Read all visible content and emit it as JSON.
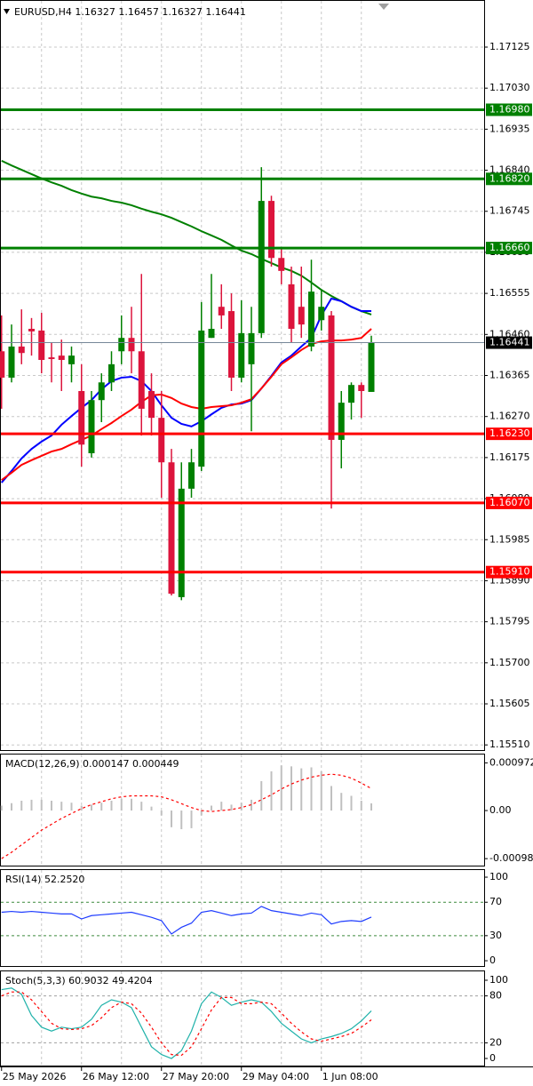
{
  "chart_data": [
    {
      "type": "candlestick",
      "title": "EURUSD,H4  1.16327 1.16457 1.16327 1.16441",
      "categories": [
        "25 May 2026",
        null,
        null,
        null,
        null,
        null,
        null,
        null,
        "26 May 12:00",
        null,
        null,
        null,
        null,
        null,
        null,
        null,
        "27 May 20:00",
        null,
        null,
        null,
        null,
        null,
        null,
        null,
        "29 May 04:00",
        null,
        null,
        null,
        null,
        null,
        null,
        null,
        "1 Jun 08:00",
        null,
        null,
        null,
        null,
        null
      ],
      "open": [
        1.16421,
        1.1636,
        1.16432,
        1.16473,
        1.16469,
        1.16407,
        1.16411,
        1.16391,
        1.16329,
        1.16185,
        1.16308,
        1.16349,
        1.16421,
        1.16452,
        1.16421,
        1.16329,
        1.16267,
        1.16164,
        1.15852,
        1.16103,
        1.16154,
        1.16452,
        1.16524,
        1.16514,
        1.1636,
        1.16391,
        1.16463,
        1.16769,
        1.16637,
        1.16576,
        1.16524,
        1.16432,
        1.16493,
        1.16504,
        1.16216,
        1.16302,
        1.16343,
        1.16327
      ],
      "high": [
        1.16504,
        1.16483,
        1.16518,
        1.16498,
        1.1651,
        1.16442,
        1.16448,
        1.16432,
        1.16391,
        1.16329,
        1.1637,
        1.16421,
        1.16504,
        1.16524,
        1.166,
        1.1637,
        1.16329,
        1.16195,
        1.16164,
        1.16195,
        1.16535,
        1.166,
        1.16576,
        1.16555,
        1.16539,
        1.16524,
        1.16847,
        1.16781,
        1.16658,
        1.16617,
        1.16617,
        1.16633,
        1.16565,
        1.16514,
        1.16329,
        1.16349,
        1.16349,
        1.16457
      ],
      "low": [
        1.16288,
        1.16349,
        1.16391,
        1.16411,
        1.1637,
        1.16349,
        1.16329,
        1.16349,
        1.16154,
        1.16175,
        1.16257,
        1.16329,
        1.16391,
        1.1637,
        1.16226,
        1.16226,
        1.16082,
        1.15856,
        1.15845,
        1.16082,
        1.16144,
        1.16452,
        1.16473,
        1.16329,
        1.16349,
        1.16236,
        1.16452,
        1.16617,
        1.16576,
        1.16442,
        1.16452,
        1.16421,
        1.16469,
        1.16057,
        1.1615,
        1.16263,
        1.16267,
        1.16327
      ],
      "close": [
        1.1636,
        1.16432,
        1.16417,
        1.16467,
        1.16401,
        1.16403,
        1.16401,
        1.16411,
        1.16205,
        1.16308,
        1.16349,
        1.16391,
        1.16452,
        1.16421,
        1.16288,
        1.16267,
        1.16164,
        1.1586,
        1.16103,
        1.16164,
        1.16469,
        1.16473,
        1.16504,
        1.1636,
        1.16463,
        1.16463,
        1.16769,
        1.16637,
        1.16607,
        1.16473,
        1.16483,
        1.16559,
        1.16524,
        1.16216,
        1.16302,
        1.16343,
        1.16329,
        1.16441
      ],
      "up_color": "#008000",
      "down_color": "#dc143c",
      "series": [
        {
          "color": "#008000",
          "values": [
            1.16862,
            1.16851,
            1.16841,
            1.16831,
            1.16821,
            1.16812,
            1.16804,
            1.16794,
            1.16786,
            1.16779,
            1.16775,
            1.16769,
            1.16765,
            1.16759,
            1.16751,
            1.16744,
            1.16738,
            1.1673,
            1.1672,
            1.1671,
            1.16699,
            1.16689,
            1.16679,
            1.16666,
            1.16654,
            1.16646,
            1.16635,
            1.16625,
            1.16615,
            1.16607,
            1.16596,
            1.1658,
            1.16563,
            1.16549,
            1.16537,
            1.16524,
            1.16514,
            1.16506
          ]
        },
        {
          "color": "#0000ff",
          "values": [
            1.16117,
            1.16144,
            1.16173,
            1.16195,
            1.16212,
            1.16226,
            1.16251,
            1.16271,
            1.1629,
            1.16308,
            1.16333,
            1.16352,
            1.1636,
            1.16362,
            1.16352,
            1.16329,
            1.16296,
            1.16267,
            1.16253,
            1.16247,
            1.16259,
            1.16275,
            1.1629,
            1.16298,
            1.163,
            1.16308,
            1.16335,
            1.16364,
            1.16395,
            1.16411,
            1.16432,
            1.16452,
            1.16504,
            1.16543,
            1.16537,
            1.16524,
            1.16514,
            1.16514
          ]
        },
        {
          "color": "#ff0000",
          "values": [
            1.16123,
            1.1614,
            1.16158,
            1.16169,
            1.16179,
            1.16189,
            1.16195,
            1.16206,
            1.16216,
            1.16226,
            1.16241,
            1.16255,
            1.16271,
            1.16286,
            1.16304,
            1.16319,
            1.16321,
            1.16313,
            1.163,
            1.16292,
            1.16288,
            1.16292,
            1.16294,
            1.16296,
            1.16302,
            1.1631,
            1.16335,
            1.16362,
            1.16391,
            1.16407,
            1.16424,
            1.16438,
            1.16444,
            1.16446,
            1.16446,
            1.16448,
            1.16452,
            1.16473
          ]
        }
      ],
      "levels": [
        {
          "value": 1.1698,
          "label": "1.16980",
          "color": "#008000"
        },
        {
          "value": 1.1682,
          "label": "1.16820",
          "color": "#008000"
        },
        {
          "value": 1.1666,
          "label": "1.16660",
          "color": "#008000"
        },
        {
          "value": 1.1623,
          "label": "1.16230",
          "color": "#ff0000"
        },
        {
          "value": 1.1607,
          "label": "1.16070",
          "color": "#ff0000"
        },
        {
          "value": 1.1591,
          "label": "1.15910",
          "color": "#ff0000"
        }
      ],
      "bid": {
        "value": 1.16441,
        "label": "1.16441"
      },
      "ylim": [
        1.15496,
        1.17234
      ],
      "yticks": [
        1.17125,
        {
          "value": 1.1703,
          "label": "1.17030"
        },
        1.16935,
        {
          "value": 1.1684,
          "label": "1.16840"
        },
        1.16745,
        {
          "value": 1.1665,
          "label": "1.16650"
        },
        1.16555,
        {
          "value": 1.1646,
          "label": "1.16460"
        },
        1.16365,
        {
          "value": 1.1627,
          "label": "1.16270"
        },
        1.16175,
        {
          "value": 1.1608,
          "label": "1.16080"
        },
        1.15985,
        {
          "value": 1.1589,
          "label": "1.15890"
        },
        1.15795,
        {
          "value": 1.157,
          "label": "1.15700"
        },
        1.15605,
        {
          "value": 1.1551,
          "label": "1.15510"
        }
      ],
      "grid": true
    },
    {
      "type": "macd",
      "title": "MACD(12,26,9) 0.000147 0.000449",
      "series": [
        {
          "style": "histogram",
          "color": "#c0c0c0",
          "values": [
            0.0001,
            0.00015,
            0.0002,
            0.00022,
            0.00022,
            0.0002,
            0.00018,
            0.00016,
            0.0001,
            0.00012,
            0.00016,
            0.0002,
            0.00024,
            0.00024,
            0.00018,
            8e-05,
            -0.0001,
            -0.00034,
            -0.00038,
            -0.00036,
            -0.0001,
            0.0001,
            0.00018,
            0.00012,
            0.00016,
            0.00022,
            0.0006,
            0.0008,
            0.00092,
            0.0009,
            0.00086,
            0.00088,
            0.0008,
            0.0005,
            0.00036,
            0.0003,
            0.0002,
            0.000147
          ]
        },
        {
          "style": "dashed",
          "color": "#ff0000",
          "values": [
            -0.00098,
            -0.00085,
            -0.0007,
            -0.00055,
            -0.0004,
            -0.00028,
            -0.00016,
            -6e-05,
            4e-05,
            0.00012,
            0.00018,
            0.00024,
            0.00028,
            0.0003,
            0.0003,
            0.0003,
            0.00028,
            0.00022,
            0.00014,
            6e-05,
            0,
            -2e-05,
            0,
            2e-05,
            6e-05,
            0.00012,
            0.00022,
            0.00032,
            0.00044,
            0.00054,
            0.00062,
            0.00068,
            0.00072,
            0.00074,
            0.00072,
            0.00066,
            0.00056,
            0.000449
          ]
        }
      ],
      "ylim": [
        -0.00114,
        0.00116
      ],
      "yticks": [
        0.000972,
        {
          "value": 0,
          "label": "0.00"
        },
        -0.00098
      ]
    },
    {
      "type": "line",
      "title": "RSI(14) 52.2520",
      "series": [
        {
          "color": "#1e3cff",
          "values": [
            58,
            59,
            58,
            59,
            58,
            57,
            56,
            56,
            50,
            54,
            55,
            56,
            57,
            58,
            55,
            52,
            48,
            32,
            40,
            45,
            58,
            60,
            57,
            54,
            56,
            57,
            65,
            60,
            58,
            56,
            54,
            57,
            55,
            44,
            47,
            48,
            47,
            52.252
          ]
        }
      ],
      "levels": [
        30,
        70
      ],
      "level_color": "#3c8a3c",
      "ylim": [
        -7.4,
        109.6
      ],
      "yticks": [
        0,
        30,
        70,
        100
      ]
    },
    {
      "type": "line",
      "title": "Stoch(5,3,3) 60.9032 49.4204",
      "series": [
        {
          "color": "#20b2aa",
          "values": [
            88,
            90,
            82,
            55,
            40,
            35,
            40,
            38,
            40,
            50,
            68,
            75,
            72,
            65,
            40,
            15,
            5,
            0,
            10,
            35,
            70,
            85,
            78,
            68,
            72,
            75,
            72,
            60,
            45,
            35,
            25,
            20,
            25,
            28,
            32,
            38,
            48,
            60.9032
          ]
        },
        {
          "color": "#ff0000",
          "style": "dashed",
          "values": [
            80,
            85,
            85,
            75,
            60,
            45,
            38,
            37,
            38,
            42,
            52,
            65,
            72,
            70,
            58,
            40,
            20,
            5,
            4,
            15,
            38,
            62,
            78,
            78,
            70,
            70,
            72,
            70,
            58,
            45,
            34,
            25,
            22,
            25,
            28,
            32,
            40,
            49.4204
          ]
        }
      ],
      "levels": [
        20,
        80
      ],
      "level_color": "#a0a0a0",
      "ylim": [
        -10.2,
        112.5
      ],
      "yticks": [
        0,
        20,
        80,
        100
      ]
    }
  ]
}
